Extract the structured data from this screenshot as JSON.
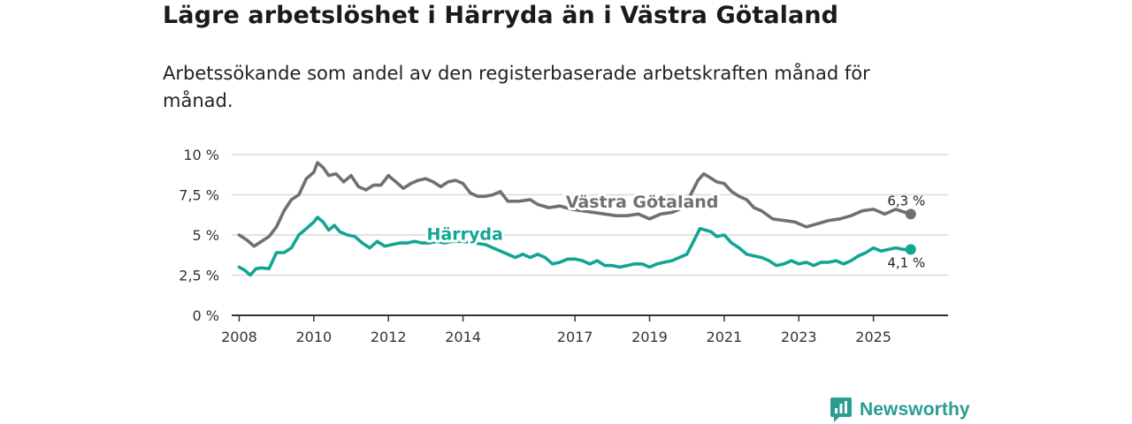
{
  "header": {
    "title": "Lägre arbetslöshet i Härryda än i Västra Götaland",
    "subtitle": "Arbetssökande som andel av den registerbaserade arbetskraften månad för månad."
  },
  "brand": {
    "name": "Newsworthy"
  },
  "colors": {
    "regional": "#707070",
    "local": "#12a594",
    "grid": "#d9d9d9",
    "axis": "#333333"
  },
  "chart_data": {
    "type": "line",
    "title": "Lägre arbetslöshet i Härryda än i Västra Götaland",
    "xlabel": "",
    "ylabel": "",
    "xlim": [
      2007.8,
      2027.0
    ],
    "ylim": [
      0,
      10
    ],
    "y_ticks": [
      0,
      2.5,
      5,
      7.5,
      10
    ],
    "y_tick_labels": [
      "0 %",
      "2,5 %",
      "5 %",
      "7,5 %",
      "10 %"
    ],
    "x_ticks": [
      2008,
      2010,
      2012,
      2014,
      2017,
      2019,
      2021,
      2023,
      2025
    ],
    "x_tick_labels": [
      "2008",
      "2010",
      "2012",
      "2014",
      "2017",
      "2019",
      "2021",
      "2023",
      "2025"
    ],
    "grid": true,
    "series": [
      {
        "name": "Västra Götaland",
        "color": "#707070",
        "end_label": "6,3 %",
        "points": [
          [
            2008.0,
            5.0
          ],
          [
            2008.2,
            4.7
          ],
          [
            2008.4,
            4.3
          ],
          [
            2008.6,
            4.6
          ],
          [
            2008.8,
            4.9
          ],
          [
            2009.0,
            5.5
          ],
          [
            2009.2,
            6.5
          ],
          [
            2009.4,
            7.2
          ],
          [
            2009.6,
            7.5
          ],
          [
            2009.8,
            8.5
          ],
          [
            2010.0,
            8.9
          ],
          [
            2010.1,
            9.5
          ],
          [
            2010.25,
            9.2
          ],
          [
            2010.4,
            8.7
          ],
          [
            2010.6,
            8.8
          ],
          [
            2010.8,
            8.3
          ],
          [
            2011.0,
            8.7
          ],
          [
            2011.2,
            8.0
          ],
          [
            2011.4,
            7.8
          ],
          [
            2011.6,
            8.1
          ],
          [
            2011.8,
            8.1
          ],
          [
            2012.0,
            8.7
          ],
          [
            2012.2,
            8.3
          ],
          [
            2012.4,
            7.9
          ],
          [
            2012.6,
            8.2
          ],
          [
            2012.8,
            8.4
          ],
          [
            2013.0,
            8.5
          ],
          [
            2013.2,
            8.3
          ],
          [
            2013.4,
            8.0
          ],
          [
            2013.6,
            8.3
          ],
          [
            2013.8,
            8.4
          ],
          [
            2014.0,
            8.2
          ],
          [
            2014.2,
            7.6
          ],
          [
            2014.4,
            7.4
          ],
          [
            2014.6,
            7.4
          ],
          [
            2014.8,
            7.5
          ],
          [
            2015.0,
            7.7
          ],
          [
            2015.2,
            7.1
          ],
          [
            2015.5,
            7.1
          ],
          [
            2015.8,
            7.2
          ],
          [
            2016.0,
            6.9
          ],
          [
            2016.3,
            6.7
          ],
          [
            2016.6,
            6.8
          ],
          [
            2016.9,
            6.6
          ],
          [
            2017.2,
            6.5
          ],
          [
            2017.5,
            6.4
          ],
          [
            2017.8,
            6.3
          ],
          [
            2018.1,
            6.2
          ],
          [
            2018.4,
            6.2
          ],
          [
            2018.7,
            6.3
          ],
          [
            2019.0,
            6.0
          ],
          [
            2019.3,
            6.3
          ],
          [
            2019.6,
            6.4
          ],
          [
            2019.9,
            6.7
          ],
          [
            2020.1,
            7.5
          ],
          [
            2020.3,
            8.4
          ],
          [
            2020.45,
            8.8
          ],
          [
            2020.6,
            8.6
          ],
          [
            2020.8,
            8.3
          ],
          [
            2021.0,
            8.2
          ],
          [
            2021.2,
            7.7
          ],
          [
            2021.4,
            7.4
          ],
          [
            2021.6,
            7.2
          ],
          [
            2021.8,
            6.7
          ],
          [
            2022.0,
            6.5
          ],
          [
            2022.3,
            6.0
          ],
          [
            2022.6,
            5.9
          ],
          [
            2022.9,
            5.8
          ],
          [
            2023.2,
            5.5
          ],
          [
            2023.5,
            5.7
          ],
          [
            2023.8,
            5.9
          ],
          [
            2024.1,
            6.0
          ],
          [
            2024.4,
            6.2
          ],
          [
            2024.7,
            6.5
          ],
          [
            2025.0,
            6.6
          ],
          [
            2025.3,
            6.3
          ],
          [
            2025.6,
            6.6
          ],
          [
            2025.85,
            6.4
          ],
          [
            2026.0,
            6.3
          ]
        ]
      },
      {
        "name": "Härryda",
        "color": "#12a594",
        "end_label": "4,1 %",
        "points": [
          [
            2008.0,
            3.0
          ],
          [
            2008.15,
            2.8
          ],
          [
            2008.3,
            2.5
          ],
          [
            2008.45,
            2.9
          ],
          [
            2008.6,
            2.95
          ],
          [
            2008.8,
            2.9
          ],
          [
            2009.0,
            3.9
          ],
          [
            2009.2,
            3.9
          ],
          [
            2009.4,
            4.2
          ],
          [
            2009.6,
            5.0
          ],
          [
            2009.8,
            5.4
          ],
          [
            2010.0,
            5.8
          ],
          [
            2010.1,
            6.1
          ],
          [
            2010.25,
            5.8
          ],
          [
            2010.4,
            5.3
          ],
          [
            2010.55,
            5.6
          ],
          [
            2010.7,
            5.2
          ],
          [
            2010.9,
            5.0
          ],
          [
            2011.1,
            4.9
          ],
          [
            2011.3,
            4.5
          ],
          [
            2011.5,
            4.2
          ],
          [
            2011.7,
            4.6
          ],
          [
            2011.9,
            4.3
          ],
          [
            2012.1,
            4.4
          ],
          [
            2012.3,
            4.5
          ],
          [
            2012.5,
            4.5
          ],
          [
            2012.7,
            4.6
          ],
          [
            2012.9,
            4.5
          ],
          [
            2013.1,
            4.5
          ],
          [
            2013.3,
            4.6
          ],
          [
            2013.5,
            4.5
          ],
          [
            2013.7,
            4.6
          ],
          [
            2014.0,
            4.6
          ],
          [
            2014.3,
            4.5
          ],
          [
            2014.6,
            4.4
          ],
          [
            2014.9,
            4.1
          ],
          [
            2015.2,
            3.8
          ],
          [
            2015.4,
            3.6
          ],
          [
            2015.6,
            3.8
          ],
          [
            2015.8,
            3.6
          ],
          [
            2016.0,
            3.8
          ],
          [
            2016.2,
            3.6
          ],
          [
            2016.4,
            3.2
          ],
          [
            2016.6,
            3.3
          ],
          [
            2016.8,
            3.5
          ],
          [
            2017.0,
            3.5
          ],
          [
            2017.2,
            3.4
          ],
          [
            2017.4,
            3.2
          ],
          [
            2017.6,
            3.4
          ],
          [
            2017.8,
            3.1
          ],
          [
            2018.0,
            3.1
          ],
          [
            2018.2,
            3.0
          ],
          [
            2018.4,
            3.1
          ],
          [
            2018.6,
            3.2
          ],
          [
            2018.8,
            3.2
          ],
          [
            2019.0,
            3.0
          ],
          [
            2019.2,
            3.2
          ],
          [
            2019.4,
            3.3
          ],
          [
            2019.6,
            3.4
          ],
          [
            2019.8,
            3.6
          ],
          [
            2020.0,
            3.8
          ],
          [
            2020.2,
            4.7
          ],
          [
            2020.35,
            5.4
          ],
          [
            2020.5,
            5.3
          ],
          [
            2020.65,
            5.2
          ],
          [
            2020.8,
            4.9
          ],
          [
            2021.0,
            5.0
          ],
          [
            2021.2,
            4.5
          ],
          [
            2021.4,
            4.2
          ],
          [
            2021.6,
            3.8
          ],
          [
            2021.8,
            3.7
          ],
          [
            2022.0,
            3.6
          ],
          [
            2022.2,
            3.4
          ],
          [
            2022.4,
            3.1
          ],
          [
            2022.6,
            3.2
          ],
          [
            2022.8,
            3.4
          ],
          [
            2023.0,
            3.2
          ],
          [
            2023.2,
            3.3
          ],
          [
            2023.4,
            3.1
          ],
          [
            2023.6,
            3.3
          ],
          [
            2023.8,
            3.3
          ],
          [
            2024.0,
            3.4
          ],
          [
            2024.2,
            3.2
          ],
          [
            2024.4,
            3.4
          ],
          [
            2024.6,
            3.7
          ],
          [
            2024.8,
            3.9
          ],
          [
            2025.0,
            4.2
          ],
          [
            2025.2,
            4.0
          ],
          [
            2025.4,
            4.1
          ],
          [
            2025.6,
            4.2
          ],
          [
            2025.8,
            4.1
          ],
          [
            2026.0,
            4.1
          ]
        ]
      }
    ],
    "annotations": [
      {
        "text": "Västra Götaland",
        "series": "Västra Götaland",
        "x": 2018.8,
        "y": 6.7
      },
      {
        "text": "Härryda",
        "series": "Härryda",
        "x": 2014.05,
        "y": 4.7
      }
    ]
  }
}
